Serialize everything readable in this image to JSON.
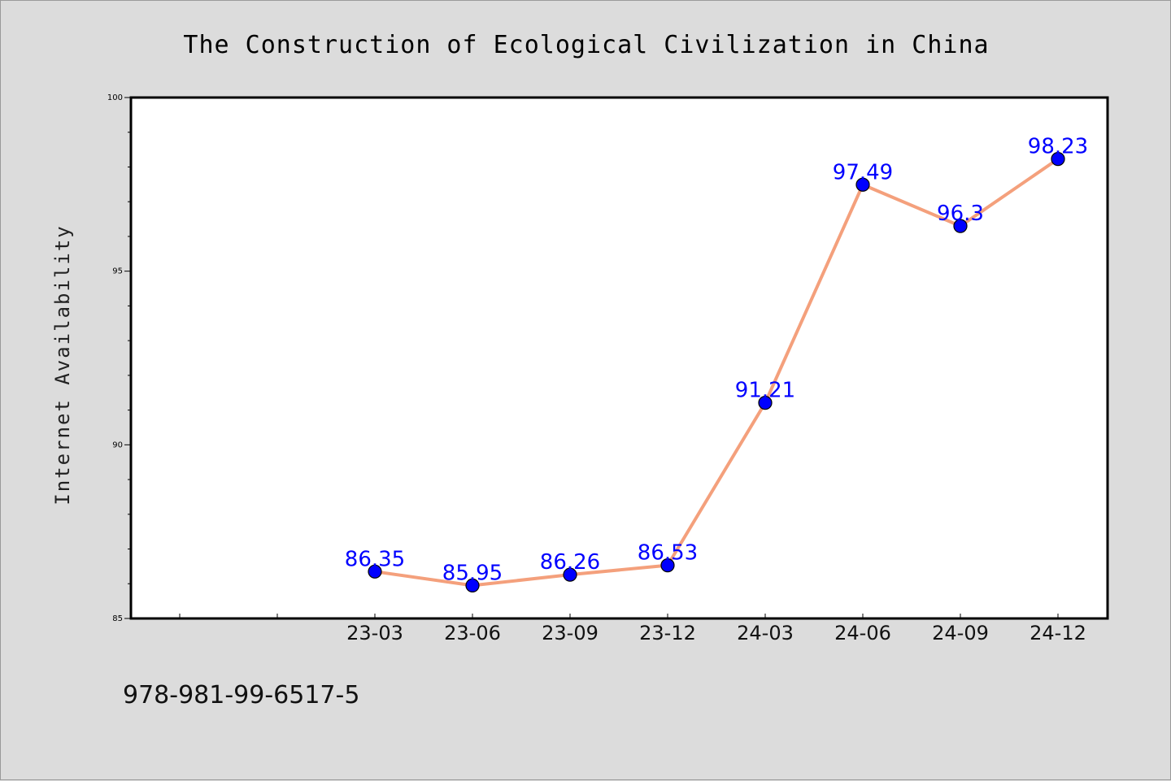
{
  "chart_data": {
    "type": "line",
    "title": "The Construction of Ecological Civilization in China",
    "xlabel": "",
    "ylabel": "Internet Availability",
    "categories": [
      "23-03",
      "23-06",
      "23-09",
      "23-12",
      "24-03",
      "24-06",
      "24-09",
      "24-12"
    ],
    "series": [
      {
        "values": [
          86.35,
          85.95,
          86.26,
          86.53,
          91.21,
          97.49,
          96.3,
          98.23
        ],
        "labels": [
          "86.35",
          "85.95",
          "86.26",
          "86.53",
          "91.21",
          "97.49",
          "96.3",
          "98.23"
        ]
      }
    ],
    "ylim": [
      85,
      100
    ],
    "yticks": [
      "85",
      "90",
      "95",
      "100"
    ],
    "grid": false,
    "legend": "none",
    "colors": {
      "line": "#f4a07c",
      "marker": "#0000ff",
      "data_label": "#0000ff",
      "plot_background": "#ffffff",
      "page_background": "#dcdcdc"
    }
  },
  "footer": {
    "isbn": "978-981-99-6517-5"
  }
}
